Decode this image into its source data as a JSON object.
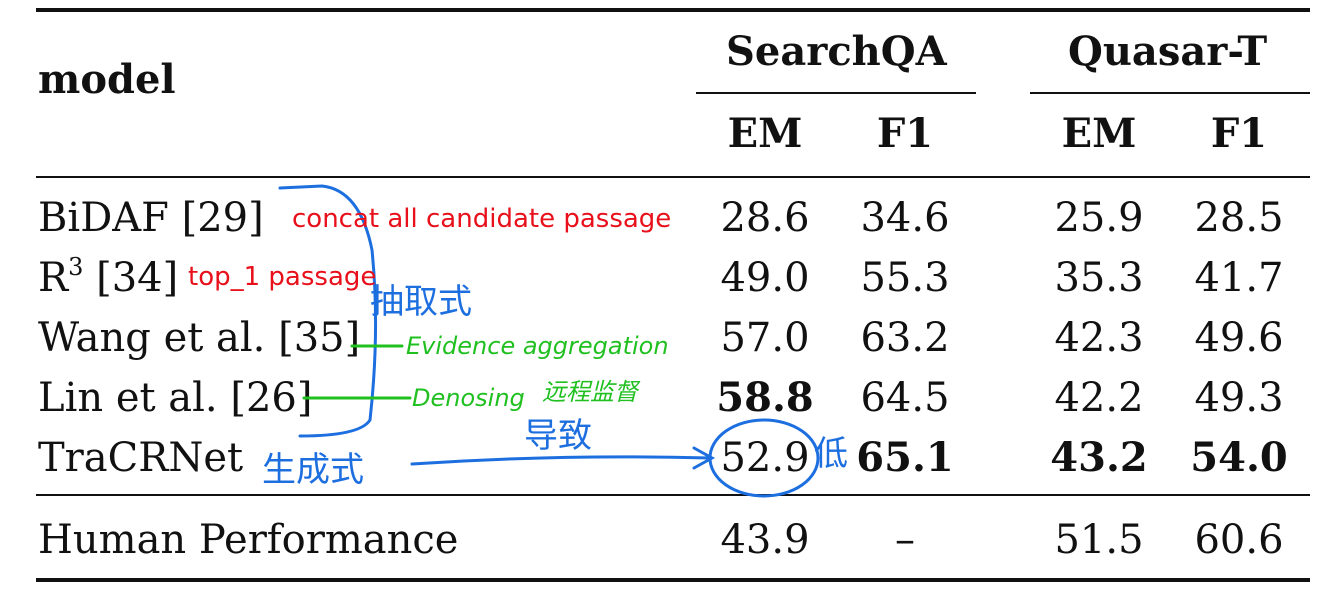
{
  "table": {
    "header": {
      "model_label": "model",
      "groups": [
        "SearchQA",
        "Quasar-T"
      ],
      "subcolumns": [
        "EM",
        "F1",
        "EM",
        "F1"
      ]
    },
    "rows": [
      {
        "model": "BiDAF [29]",
        "values": [
          "28.6",
          "34.6",
          "25.9",
          "28.5"
        ],
        "bold": [
          false,
          false,
          false,
          false
        ]
      },
      {
        "model_base": "R",
        "model_sup": "3",
        "model_rest": " [34]",
        "values": [
          "49.0",
          "55.3",
          "35.3",
          "41.7"
        ],
        "bold": [
          false,
          false,
          false,
          false
        ]
      },
      {
        "model": "Wang et al. [35]",
        "values": [
          "57.0",
          "63.2",
          "42.3",
          "49.6"
        ],
        "bold": [
          false,
          false,
          false,
          false
        ]
      },
      {
        "model": "Lin et al. [26]",
        "values": [
          "58.8",
          "64.5",
          "42.2",
          "49.3"
        ],
        "bold": [
          true,
          false,
          false,
          false
        ]
      },
      {
        "model": "TraCRNet",
        "values": [
          "52.9",
          "65.1",
          "43.2",
          "54.0"
        ],
        "bold": [
          false,
          true,
          true,
          true
        ]
      }
    ],
    "human_row": {
      "model": "Human Performance",
      "values": [
        "43.9",
        "–",
        "51.5",
        "60.6"
      ]
    }
  },
  "annotations": {
    "red": [
      "concat all candidate passage",
      "top_1 passage"
    ],
    "green": [
      "Evidence aggregation",
      "Denosing",
      "远程监督"
    ],
    "blue": [
      "抽取式",
      "生成式",
      "导致",
      "低"
    ]
  },
  "colors": {
    "red_ink": "#e8101b",
    "green_ink": "#20c020",
    "blue_ink": "#1d6fe0",
    "rules": "#111111"
  }
}
